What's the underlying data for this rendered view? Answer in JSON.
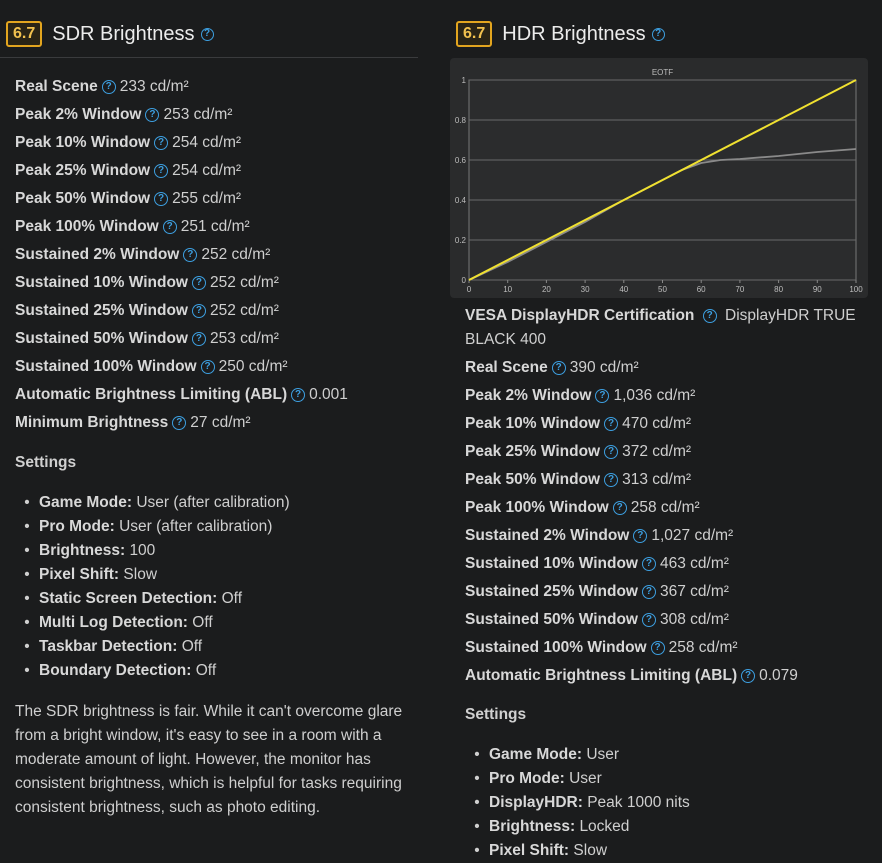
{
  "sdr": {
    "score": "6.7",
    "title": "SDR Brightness",
    "rows": [
      {
        "label": "Real Scene",
        "value": "233 cd/m²"
      },
      {
        "label": "Peak 2% Window",
        "value": "253 cd/m²"
      },
      {
        "label": "Peak 10% Window",
        "value": "254 cd/m²"
      },
      {
        "label": "Peak 25% Window",
        "value": "254 cd/m²"
      },
      {
        "label": "Peak 50% Window",
        "value": "255 cd/m²"
      },
      {
        "label": "Peak 100% Window",
        "value": "251 cd/m²"
      },
      {
        "label": "Sustained 2% Window",
        "value": "252 cd/m²"
      },
      {
        "label": "Sustained 10% Window",
        "value": "252 cd/m²"
      },
      {
        "label": "Sustained 25% Window",
        "value": "252 cd/m²"
      },
      {
        "label": "Sustained 50% Window",
        "value": "253 cd/m²"
      },
      {
        "label": "Sustained 100% Window",
        "value": "250 cd/m²"
      },
      {
        "label": "Automatic Brightness Limiting (ABL)",
        "value": "0.001"
      },
      {
        "label": "Minimum Brightness",
        "value": "27 cd/m²"
      }
    ],
    "settings_heading": "Settings",
    "settings": [
      {
        "label": "Game Mode:",
        "value": "User (after calibration)"
      },
      {
        "label": "Pro Mode:",
        "value": "User (after calibration)"
      },
      {
        "label": "Brightness:",
        "value": "100"
      },
      {
        "label": "Pixel Shift:",
        "value": "Slow"
      },
      {
        "label": "Static Screen Detection:",
        "value": "Off"
      },
      {
        "label": "Multi Log Detection:",
        "value": "Off"
      },
      {
        "label": "Taskbar Detection:",
        "value": "Off"
      },
      {
        "label": "Boundary Detection:",
        "value": "Off"
      }
    ],
    "paragraph": "The SDR brightness is fair. While it can't overcome glare from a bright window, it's easy to see in a room with a moderate amount of light. However, the monitor has consistent brightness, which is helpful for tasks requiring consistent brightness, such as photo editing."
  },
  "hdr": {
    "score": "6.7",
    "title": "HDR Brightness",
    "certification": {
      "label": "VESA DisplayHDR Certification",
      "value": "DisplayHDR TRUE BLACK 400"
    },
    "rows": [
      {
        "label": "Real Scene",
        "value": "390 cd/m²"
      },
      {
        "label": "Peak 2% Window",
        "value": "1,036 cd/m²"
      },
      {
        "label": "Peak 10% Window",
        "value": "470 cd/m²"
      },
      {
        "label": "Peak 25% Window",
        "value": "372 cd/m²"
      },
      {
        "label": "Peak 50% Window",
        "value": "313 cd/m²"
      },
      {
        "label": "Peak 100% Window",
        "value": "258 cd/m²"
      },
      {
        "label": "Sustained 2% Window",
        "value": "1,027 cd/m²"
      },
      {
        "label": "Sustained 10% Window",
        "value": "463 cd/m²"
      },
      {
        "label": "Sustained 25% Window",
        "value": "367 cd/m²"
      },
      {
        "label": "Sustained 50% Window",
        "value": "308 cd/m²"
      },
      {
        "label": "Sustained 100% Window",
        "value": "258 cd/m²"
      },
      {
        "label": "Automatic Brightness Limiting (ABL)",
        "value": "0.079"
      }
    ],
    "settings_heading": "Settings",
    "settings": [
      {
        "label": "Game Mode:",
        "value": "User"
      },
      {
        "label": "Pro Mode:",
        "value": "User"
      },
      {
        "label": "DisplayHDR:",
        "value": "Peak 1000 nits"
      },
      {
        "label": "Brightness:",
        "value": "Locked"
      },
      {
        "label": "Pixel Shift:",
        "value": "Slow"
      }
    ]
  },
  "colors": {
    "accent": "#e3a51f",
    "help": "#3d9fe0",
    "target": "#f0e130",
    "measured": "#8a8a8a"
  },
  "icons": {
    "help": "question-circle-icon"
  },
  "chart_data": {
    "type": "line",
    "title": "EOTF",
    "xlabel": "",
    "ylabel": "",
    "xlim": [
      0,
      100
    ],
    "ylim": [
      0,
      1
    ],
    "xticks": [
      "0",
      "10",
      "20",
      "30",
      "40",
      "50",
      "60",
      "70",
      "80",
      "90",
      "100"
    ],
    "yticks": [
      "0",
      "0.2",
      "0.4",
      "0.6",
      "0.8",
      "1"
    ],
    "grid": true,
    "series": [
      {
        "color": "#f0e130",
        "x": [
          0,
          100
        ],
        "y": [
          0,
          1
        ]
      },
      {
        "color": "#8a8a8a",
        "x": [
          0,
          10,
          20,
          30,
          40,
          50,
          55,
          60,
          65,
          70,
          80,
          90,
          100
        ],
        "y": [
          0,
          0.09,
          0.19,
          0.29,
          0.4,
          0.5,
          0.55,
          0.585,
          0.6,
          0.605,
          0.62,
          0.64,
          0.655
        ]
      }
    ]
  }
}
